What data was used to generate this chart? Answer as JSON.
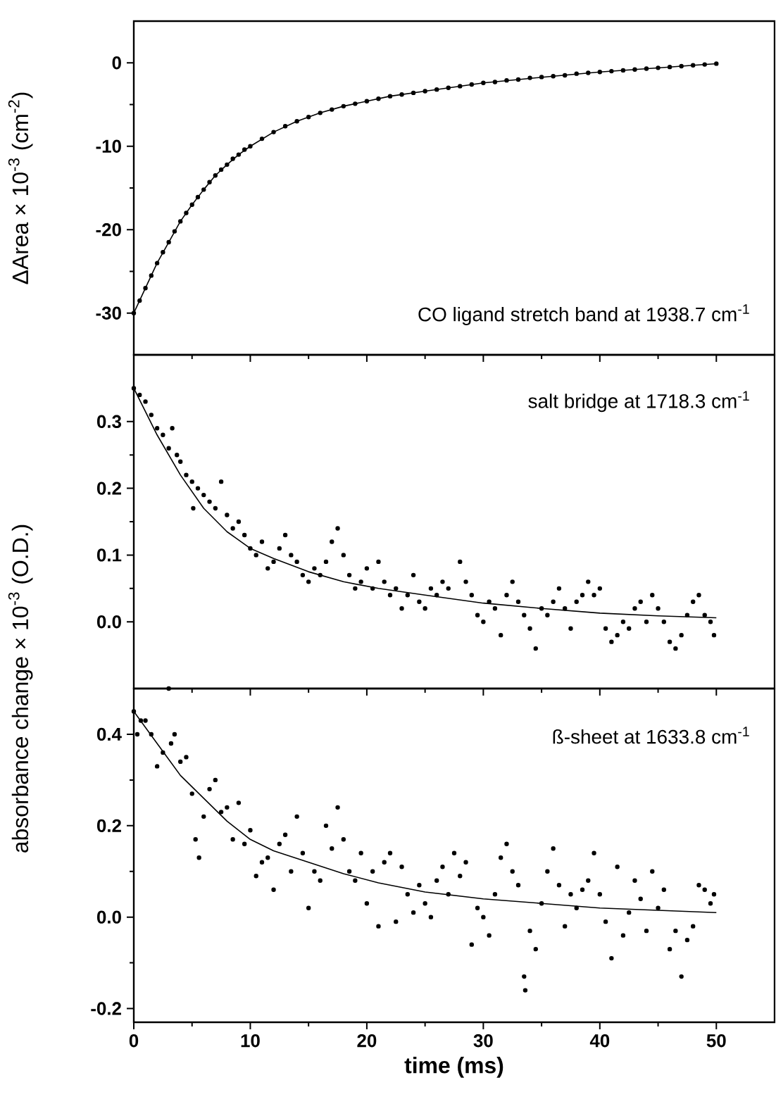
{
  "chart_data": [
    {
      "type": "scatter",
      "ylabel": "ΔArea × 10$^{-3}$ (cm$^{-2}$)",
      "xlim": [
        0,
        55
      ],
      "xticks": [
        0,
        10,
        20,
        30,
        40,
        50
      ],
      "ylim": [
        -35,
        5
      ],
      "yticks": [
        -30,
        -20,
        -10,
        0
      ],
      "tick_labels": "y",
      "annotations": [
        "CO ligand stretch band at 1938.7 cm$^{-1}$"
      ],
      "series": [
        {
          "type": "scatter",
          "color": "#000000",
          "marker": "circle",
          "x": [
            0,
            0.5,
            1,
            1.5,
            2,
            2.5,
            3,
            3.5,
            4,
            4.5,
            5,
            5.5,
            6,
            6.5,
            7,
            7.5,
            8,
            8.5,
            9,
            9.5,
            10,
            11,
            12,
            13,
            14,
            15,
            16,
            17,
            18,
            19,
            20,
            21,
            22,
            23,
            24,
            25,
            26,
            27,
            28,
            29,
            30,
            31,
            32,
            33,
            34,
            35,
            36,
            37,
            38,
            39,
            40,
            41,
            42,
            43,
            44,
            45,
            46,
            47,
            48,
            49,
            50
          ],
          "values": [
            -30,
            -28.5,
            -27,
            -25.5,
            -24,
            -22.7,
            -21.5,
            -20.2,
            -19,
            -18,
            -17,
            -16.1,
            -15.2,
            -14.3,
            -13.5,
            -12.8,
            -12.2,
            -11.5,
            -11,
            -10.4,
            -10,
            -9.1,
            -8.3,
            -7.6,
            -7,
            -6.5,
            -6,
            -5.6,
            -5.2,
            -4.9,
            -4.6,
            -4.3,
            -4,
            -3.8,
            -3.6,
            -3.4,
            -3.2,
            -3,
            -2.8,
            -2.6,
            -2.4,
            -2.3,
            -2.1,
            -2,
            -1.8,
            -1.7,
            -1.6,
            -1.5,
            -1.3,
            -1.2,
            -1.1,
            -1,
            -0.9,
            -0.8,
            -0.7,
            -0.6,
            -0.5,
            -0.4,
            -0.3,
            -0.2,
            -0.1
          ]
        },
        {
          "type": "line",
          "color": "#000000",
          "marker": "none",
          "x": [
            0,
            1,
            2,
            3,
            4,
            5,
            6,
            7,
            8,
            9,
            10,
            12,
            14,
            16,
            18,
            20,
            22,
            25,
            28,
            30,
            33,
            36,
            40,
            43,
            46,
            48,
            50
          ],
          "values": [
            -30,
            -27,
            -24,
            -21.5,
            -19,
            -17,
            -15.2,
            -13.5,
            -12.2,
            -11,
            -10,
            -8.3,
            -7,
            -6,
            -5.2,
            -4.6,
            -4,
            -3.4,
            -2.8,
            -2.4,
            -2,
            -1.6,
            -1.1,
            -0.8,
            -0.5,
            -0.3,
            -0.1
          ]
        }
      ]
    },
    {
      "type": "scatter",
      "xlim": [
        0,
        55
      ],
      "xticks": [
        0,
        10,
        20,
        30,
        40,
        50
      ],
      "ylim": [
        -0.1,
        0.4
      ],
      "yticks": [
        {
          "value": 0,
          "label": "0.0"
        },
        0.1,
        0.2,
        0.3
      ],
      "tick_labels": "y",
      "annotations": [
        "salt bridge at 1718.3 cm$^{-1}$"
      ],
      "series": [
        {
          "type": "scatter",
          "color": "#000000",
          "marker": "circle",
          "x": [
            0,
            0.5,
            1,
            1.5,
            2,
            2.5,
            3,
            3.3,
            3.7,
            4,
            4.5,
            5,
            5.1,
            5.5,
            6,
            6.5,
            7,
            7.5,
            8,
            8.5,
            9,
            9.5,
            10,
            10.5,
            11,
            11.5,
            12,
            12.5,
            13,
            13.5,
            14,
            14.5,
            15,
            15.5,
            16,
            16.5,
            17,
            17.5,
            18,
            18.5,
            19,
            19.5,
            20,
            20.5,
            21,
            21.5,
            22,
            22.5,
            23,
            23.5,
            24,
            24.5,
            25,
            25.5,
            26,
            26.5,
            27,
            28,
            28.5,
            29,
            29.5,
            30,
            30.5,
            31,
            31.5,
            32,
            32.5,
            33,
            33.5,
            34,
            34.5,
            35,
            35.5,
            36,
            36.5,
            37,
            37.5,
            38,
            38.5,
            39,
            39.5,
            40,
            40.5,
            41,
            41.5,
            42,
            42.5,
            43,
            43.5,
            44,
            44.5,
            45,
            45.5,
            46,
            46.5,
            47,
            47.5,
            48,
            48.5,
            49,
            49.5,
            49.8
          ],
          "values": [
            0.35,
            0.34,
            0.33,
            0.31,
            0.29,
            0.28,
            0.26,
            0.29,
            0.25,
            0.24,
            0.22,
            0.21,
            0.17,
            0.2,
            0.19,
            0.18,
            0.17,
            0.21,
            0.16,
            0.14,
            0.15,
            0.13,
            0.11,
            0.1,
            0.12,
            0.08,
            0.09,
            0.11,
            0.13,
            0.1,
            0.09,
            0.07,
            0.06,
            0.08,
            0.07,
            0.09,
            0.12,
            0.14,
            0.1,
            0.07,
            0.05,
            0.06,
            0.08,
            0.05,
            0.09,
            0.06,
            0.04,
            0.05,
            0.02,
            0.04,
            0.07,
            0.03,
            0.02,
            0.05,
            0.04,
            0.06,
            0.05,
            0.09,
            0.06,
            0.04,
            0.01,
            0,
            0.03,
            0.02,
            -0.02,
            0.04,
            0.06,
            0.03,
            0.01,
            -0.01,
            -0.04,
            0.02,
            0.01,
            0.03,
            0.05,
            0.02,
            -0.01,
            0.03,
            0.04,
            0.06,
            0.04,
            0.05,
            -0.01,
            -0.03,
            -0.02,
            0,
            -0.01,
            0.02,
            0.03,
            0,
            0.04,
            0.02,
            0,
            -0.03,
            -0.04,
            -0.02,
            0.01,
            0.03,
            0.04,
            0.01,
            0,
            -0.02
          ]
        },
        {
          "type": "line",
          "color": "#000000",
          "marker": "none",
          "x": [
            0,
            2,
            4,
            6,
            8,
            10,
            12,
            15,
            18,
            21,
            25,
            30,
            35,
            40,
            45,
            50
          ],
          "values": [
            0.35,
            0.28,
            0.22,
            0.17,
            0.135,
            0.11,
            0.095,
            0.075,
            0.06,
            0.05,
            0.04,
            0.028,
            0.02,
            0.013,
            0.009,
            0.006
          ]
        }
      ]
    },
    {
      "type": "scatter",
      "xlabel": "time (ms)",
      "ylabel": "absorbance change × 10$^{-3}$ (O.D.)",
      "xlim": [
        0,
        55
      ],
      "xticks": [
        0,
        10,
        20,
        30,
        40,
        50
      ],
      "ylim": [
        -0.23,
        0.5
      ],
      "yticks": [
        -0.2,
        {
          "value": 0,
          "label": "0.0"
        },
        0.2,
        0.4
      ],
      "annotations": [
        "ß-sheet at 1633.8 cm$^{-1}$"
      ],
      "series": [
        {
          "type": "scatter",
          "color": "#000000",
          "marker": "circle",
          "x": [
            0,
            0.3,
            0.6,
            1,
            1.5,
            2,
            2.5,
            3,
            3.2,
            3.5,
            4,
            4.5,
            5,
            5.3,
            5.6,
            6,
            6.5,
            7,
            7.5,
            8,
            8.5,
            9,
            9.5,
            10,
            10.5,
            11,
            11.5,
            12,
            12.5,
            13,
            13.5,
            14,
            14.5,
            15,
            15.5,
            16,
            16.5,
            17,
            17.5,
            18,
            18.5,
            19,
            19.5,
            20,
            20.5,
            21,
            21.5,
            22,
            22.5,
            23,
            23.5,
            24,
            24.5,
            25,
            25.5,
            26,
            26.5,
            27,
            27.5,
            28,
            28.5,
            29,
            29.5,
            30,
            30.5,
            31,
            31.5,
            32,
            32.5,
            33,
            33.5,
            33.6,
            34,
            34.5,
            35,
            35.5,
            36,
            36.5,
            37,
            37.5,
            38,
            38.5,
            39,
            39.5,
            40,
            40.5,
            41,
            41.5,
            42,
            42.5,
            43,
            43.5,
            44,
            44.5,
            45,
            45.5,
            46,
            46.5,
            47,
            47.5,
            48,
            48.5,
            49,
            49.5,
            49.8
          ],
          "values": [
            0.45,
            0.4,
            0.43,
            0.43,
            0.4,
            0.33,
            0.36,
            0.5,
            0.38,
            0.4,
            0.34,
            0.35,
            0.27,
            0.17,
            0.13,
            0.22,
            0.28,
            0.3,
            0.23,
            0.24,
            0.17,
            0.25,
            0.16,
            0.19,
            0.09,
            0.12,
            0.13,
            0.06,
            0.16,
            0.18,
            0.1,
            0.22,
            0.14,
            0.02,
            0.1,
            0.08,
            0.2,
            0.15,
            0.24,
            0.17,
            0.1,
            0.08,
            0.14,
            0.03,
            0.1,
            -0.02,
            0.12,
            0.14,
            -0.01,
            0.11,
            0.05,
            0.01,
            0.07,
            0.03,
            0,
            0.08,
            0.11,
            0.05,
            0.14,
            0.09,
            0.12,
            -0.06,
            0.02,
            0,
            -0.04,
            0.05,
            0.13,
            0.16,
            0.1,
            0.07,
            -0.13,
            -0.16,
            -0.03,
            -0.07,
            0.03,
            0.1,
            0.15,
            0.07,
            -0.02,
            0.05,
            0.02,
            0.06,
            0.08,
            0.14,
            0.05,
            -0.01,
            -0.09,
            0.11,
            -0.04,
            0.01,
            0.08,
            0.04,
            -0.03,
            0.1,
            0.02,
            0.06,
            -0.07,
            -0.03,
            -0.13,
            -0.05,
            -0.02,
            0.07,
            0.06,
            0.03,
            0.05
          ]
        },
        {
          "type": "line",
          "color": "#000000",
          "marker": "none",
          "x": [
            0,
            2,
            4,
            6,
            8,
            10,
            12,
            15,
            18,
            21,
            25,
            30,
            35,
            40,
            45,
            50
          ],
          "values": [
            0.45,
            0.38,
            0.31,
            0.26,
            0.21,
            0.17,
            0.145,
            0.12,
            0.095,
            0.075,
            0.055,
            0.04,
            0.03,
            0.02,
            0.015,
            0.01
          ]
        }
      ]
    }
  ]
}
